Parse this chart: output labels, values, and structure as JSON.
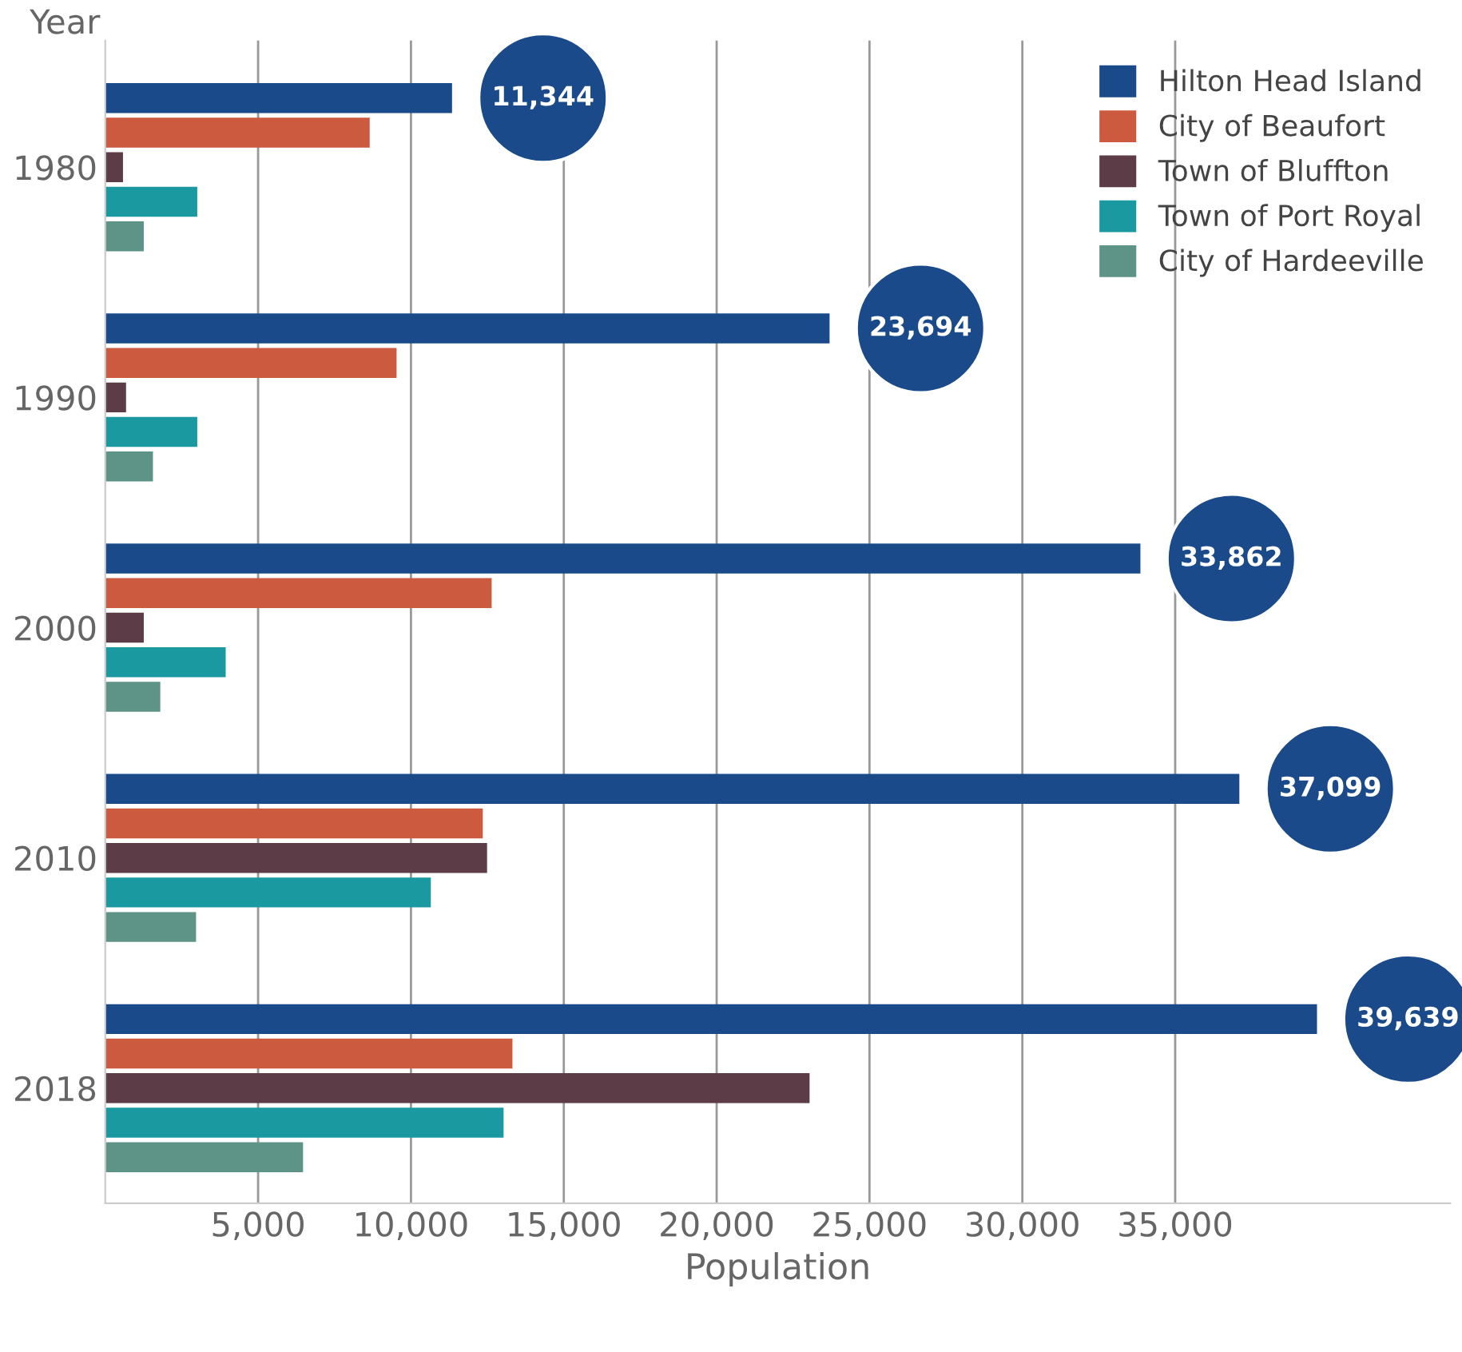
{
  "chart_data": {
    "type": "bar",
    "orientation": "horizontal",
    "ylabel": "Year",
    "xlabel": "Population",
    "categories": [
      "1980",
      "1990",
      "2000",
      "2010",
      "2018"
    ],
    "series": [
      {
        "name": "Hilton Head Island",
        "color": "#1a4a8a",
        "values": [
          11344,
          23694,
          33862,
          37099,
          39639
        ],
        "value_labels": [
          "11,344",
          "23,694",
          "33,862",
          "37,099",
          "39,639"
        ]
      },
      {
        "name": "City of Beaufort",
        "color": "#cc5a3f",
        "values": [
          8650,
          9530,
          12640,
          12350,
          13320
        ]
      },
      {
        "name": "Town of Bluffton",
        "color": "#5c3d47",
        "values": [
          580,
          680,
          1260,
          12490,
          23040
        ]
      },
      {
        "name": "Town of Port Royal",
        "color": "#1a9aa0",
        "values": [
          3010,
          3010,
          3940,
          10650,
          13030
        ]
      },
      {
        "name": "City of Hardeeville",
        "color": "#5e9488",
        "values": [
          1260,
          1560,
          1800,
          2970,
          6470
        ]
      }
    ],
    "xlim": [
      0,
      44000
    ],
    "xticks": [
      {
        "value": 5000,
        "label": "5,000"
      },
      {
        "value": 10000,
        "label": "10,000"
      },
      {
        "value": 15000,
        "label": "15,000"
      },
      {
        "value": 20000,
        "label": "20,000"
      },
      {
        "value": 25000,
        "label": "25,000"
      },
      {
        "value": 30000,
        "label": "30,000"
      },
      {
        "value": 35000,
        "label": "35,000"
      }
    ],
    "grid": "x",
    "legend": "top right"
  }
}
